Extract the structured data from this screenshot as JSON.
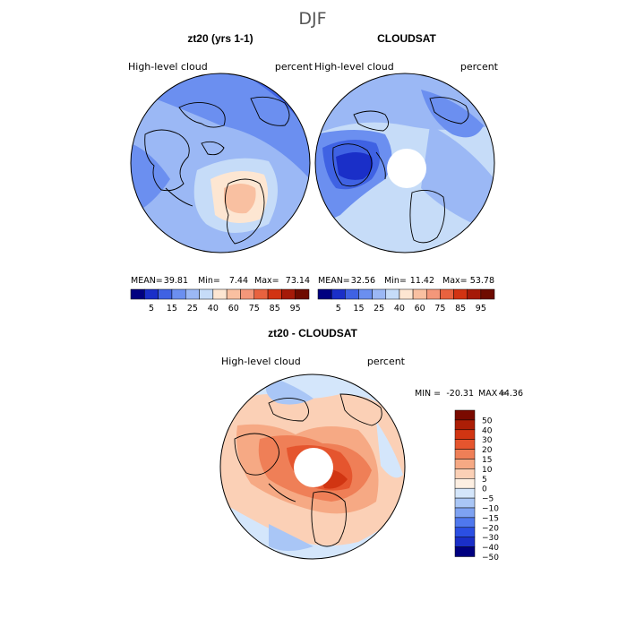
{
  "page": {
    "season": "DJF"
  },
  "palette_full": [
    "#000080",
    "#1a2fc8",
    "#3f62e3",
    "#6b8ff0",
    "#9bb8f5",
    "#c6dcf8",
    "#fde6d2",
    "#f9c0a1",
    "#f4977a",
    "#e8623f",
    "#d23312",
    "#a51a08",
    "#6e0b00"
  ],
  "palette_diff": [
    "#000080",
    "#1a2fc8",
    "#2b4fe3",
    "#4f78ee",
    "#7ea2f2",
    "#a9c6f6",
    "#d4e6fb",
    "#fdefe2",
    "#fbd0b6",
    "#f6a984",
    "#ef7f57",
    "#e5552e",
    "#d13512",
    "#ac1e06",
    "#7a0a00"
  ],
  "chart_data": [
    {
      "type": "polar_map",
      "title": "zt20 (yrs 1-1)",
      "variable_label": "High-level cloud",
      "units": "percent",
      "stats": {
        "mean_label": "MEAN=",
        "mean": "39.81",
        "min_label": "Min=",
        "min": "7.44",
        "max_label": "Max=",
        "max": "73.14"
      },
      "colorbar_ticks": [
        "5",
        "15",
        "25",
        "40",
        "60",
        "75",
        "85",
        "95"
      ]
    },
    {
      "type": "polar_map",
      "title": "CLOUDSAT",
      "variable_label": "High-level cloud",
      "units": "percent",
      "stats": {
        "mean_label": "MEAN=",
        "mean": "32.56",
        "min_label": "Min=",
        "min": "11.42",
        "max_label": "Max=",
        "max": "53.78"
      },
      "colorbar_ticks": [
        "5",
        "15",
        "25",
        "40",
        "60",
        "75",
        "85",
        "95"
      ]
    },
    {
      "type": "polar_map_difference",
      "title": "zt20 - CLOUDSAT",
      "variable_label": "High-level cloud",
      "units": "percent",
      "stats": {
        "min_label": "MIN =",
        "min": "-20.31",
        "max_label": "MAX =",
        "max": "44.36"
      },
      "colorbar_ticks": [
        "50",
        "40",
        "30",
        "20",
        "15",
        "10",
        "5",
        "0",
        "−5",
        "−10",
        "−15",
        "−20",
        "−30",
        "−40",
        "−50"
      ]
    }
  ]
}
